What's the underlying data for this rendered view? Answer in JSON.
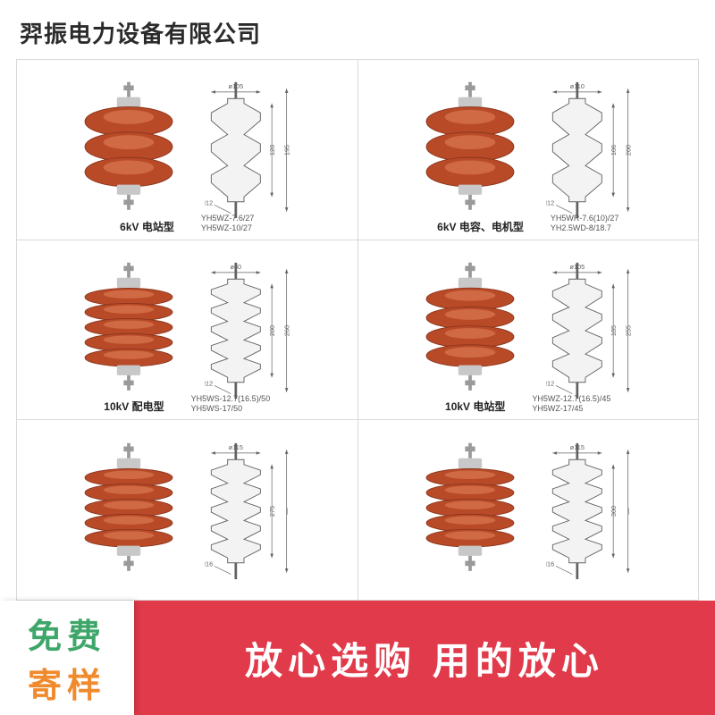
{
  "header": {
    "company": "羿振电力设备有限公司"
  },
  "colors": {
    "shed": "#b84a28",
    "shed_dark": "#8c361d",
    "ferrule": "#c8c8c8",
    "rod": "#9a9a9a",
    "diagram_line": "#626262",
    "promo_bg": "#e13a4a",
    "badge_text1": "#3fa66a",
    "badge_text2": "#f08a2c"
  },
  "products": [
    [
      {
        "sheds": 3,
        "title": "6kV 电站型",
        "models": [
          "YH5WZ-7.6/27",
          "YH5WZ-10/27"
        ],
        "diagram": {
          "top_label": "ø105",
          "heights": [
            "120",
            "195"
          ],
          "bolt": "M12"
        }
      },
      {
        "sheds": 3,
        "title": "6kV 电容、电机型",
        "models": [
          "YH5WR-7.6(10)/27",
          "YH2.5WD-8/18.7"
        ],
        "diagram": {
          "top_label": "ø110",
          "heights": [
            "106",
            "200"
          ],
          "bolt": "M12"
        }
      }
    ],
    [
      {
        "sheds": 5,
        "title": "10kV 配电型",
        "models": [
          "YH5WS-12.7(16.5)/50",
          "YH5WS-17/50"
        ],
        "diagram": {
          "top_label": "ø80",
          "heights": [
            "200",
            "260"
          ],
          "bolt": "M12"
        }
      },
      {
        "sheds": 4,
        "title": "10kV 电站型",
        "models": [
          "YH5WZ-12.7(16.5)/45",
          "YH5WZ-17/45"
        ],
        "diagram": {
          "top_label": "ø105",
          "heights": [
            "185",
            "255"
          ],
          "bolt": "M12"
        }
      }
    ],
    [
      {
        "sheds": 5,
        "title": "",
        "models": [
          ""
        ],
        "diagram": {
          "top_label": "ø115",
          "heights": [
            "275",
            "—"
          ],
          "bolt": "M16"
        }
      },
      {
        "sheds": 5,
        "title": "",
        "models": [
          ""
        ],
        "diagram": {
          "top_label": "ø115",
          "heights": [
            "300",
            "—"
          ],
          "bolt": "M16"
        }
      }
    ]
  ],
  "badge": {
    "line1": "免费",
    "line2": "寄样"
  },
  "promo": {
    "text": "放心选购  用的放心"
  }
}
